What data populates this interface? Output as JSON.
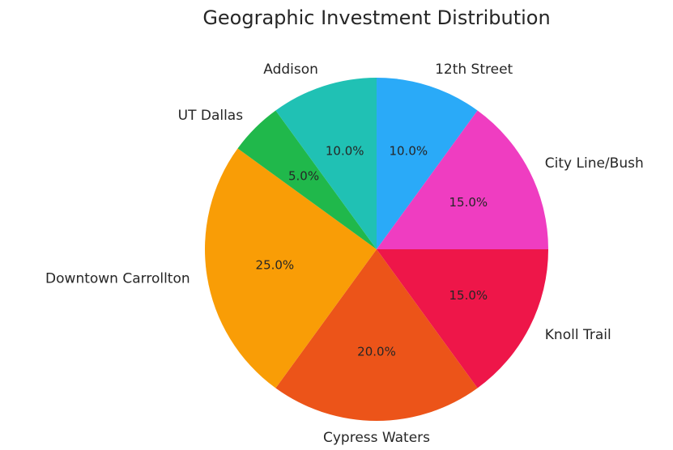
{
  "chart_data": {
    "type": "pie",
    "title": "Geographic Investment Distribution",
    "categories": [
      "12th Street",
      "City Line/Bush",
      "Knoll Trail",
      "Cypress Waters",
      "Downtown Carrollton",
      "UT Dallas",
      "Addison"
    ],
    "values": [
      10,
      15,
      15,
      20,
      25,
      5,
      10
    ],
    "value_labels": [
      "10.0%",
      "15.0%",
      "15.0%",
      "20.0%",
      "25.0%",
      "5.0%",
      "10.0%"
    ],
    "colors": [
      "#2aaaf8",
      "#ef3dc1",
      "#ee1649",
      "#ec5419",
      "#f99d06",
      "#20b84b",
      "#20c1b4"
    ],
    "start": "top",
    "direction": "clockwise"
  }
}
